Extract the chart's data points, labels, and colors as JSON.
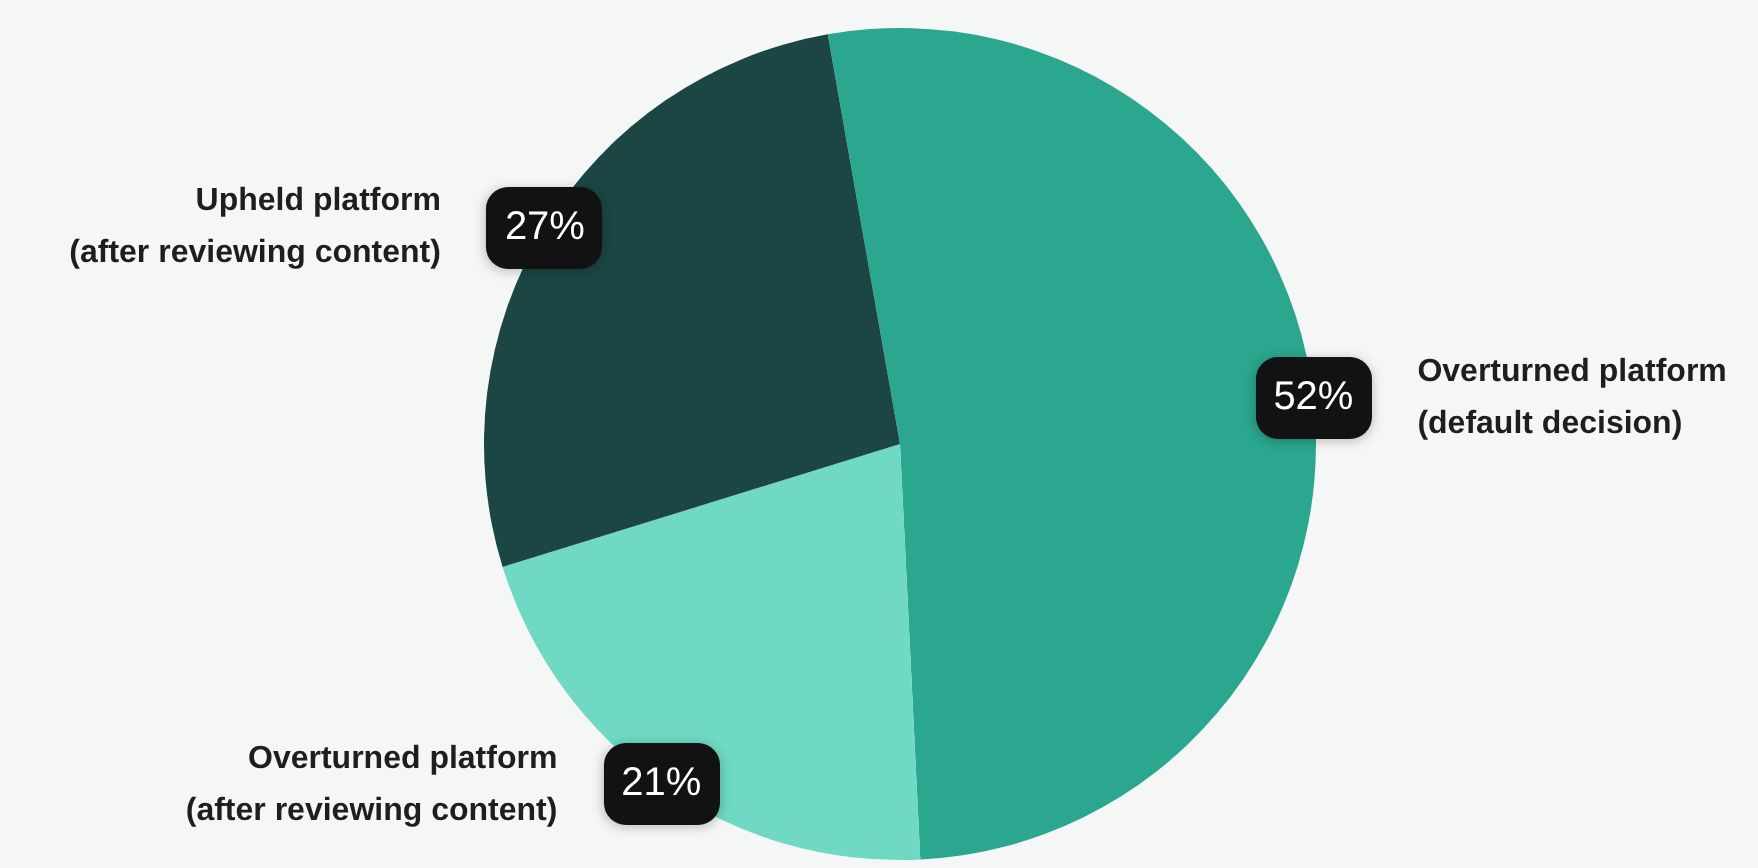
{
  "chart_data": {
    "type": "pie",
    "categories": [
      "Overturned platform\n(default decision)",
      "Overturned platform\n(after reviewing content)",
      "Upheld platform\n(after reviewing content)"
    ],
    "values": [
      52,
      21,
      27
    ],
    "colors": [
      "#2aa78e",
      "#6fd9c3",
      "#1b4643"
    ],
    "value_labels": [
      "52%",
      "21%",
      "27%"
    ],
    "legend": false
  }
}
